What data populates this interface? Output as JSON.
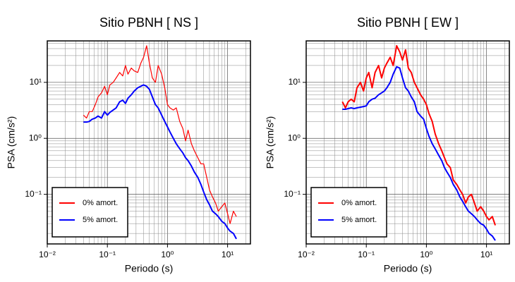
{
  "chart_data": [
    {
      "type": "line",
      "title": "Sitio PBNH [ NS ]",
      "x_label": "Periodo (s)",
      "y_label": "PSA (cm/s²)",
      "xscale": "log",
      "yscale": "log",
      "grid": "major and minor",
      "legend": "lower left",
      "xlim": [
        0.01,
        24
      ],
      "ylim": [
        0.013,
        55
      ],
      "xticks": [
        {
          "value": 0.01,
          "label": "10⁻²"
        },
        {
          "value": 0.1,
          "label": "10⁻¹"
        },
        {
          "value": 1,
          "label": "10⁰"
        },
        {
          "value": 10,
          "label": "10¹"
        }
      ],
      "yticks": [
        {
          "value": 0.1,
          "label": "10⁻¹"
        },
        {
          "value": 1,
          "label": "10⁰"
        },
        {
          "value": 10,
          "label": "10¹"
        }
      ],
      "x": [
        0.04,
        0.045,
        0.05,
        0.056,
        0.063,
        0.07,
        0.08,
        0.09,
        0.1,
        0.11,
        0.125,
        0.14,
        0.16,
        0.18,
        0.2,
        0.22,
        0.25,
        0.28,
        0.32,
        0.36,
        0.4,
        0.45,
        0.5,
        0.56,
        0.63,
        0.7,
        0.8,
        0.9,
        1.0,
        1.1,
        1.25,
        1.4,
        1.6,
        1.8,
        2.0,
        2.2,
        2.5,
        2.8,
        3.2,
        3.6,
        4.0,
        4.5,
        5.0,
        5.6,
        6.3,
        7.0,
        8.0,
        9.0,
        10,
        11,
        12.5,
        14
      ],
      "series": [
        {
          "name": "0% amort.",
          "color": "#ff0000",
          "width": 1.2,
          "values": [
            2.6,
            2.3,
            3.0,
            3.0,
            4.0,
            5.5,
            6.5,
            8.5,
            6,
            9,
            10,
            12,
            15,
            13,
            20,
            14,
            18,
            16,
            15,
            22,
            28,
            45,
            22,
            12,
            10,
            20,
            14,
            8,
            4,
            3.5,
            3.2,
            3.5,
            2.0,
            1.5,
            0.9,
            1.4,
            0.8,
            0.6,
            0.45,
            0.35,
            0.35,
            0.2,
            0.12,
            0.09,
            0.07,
            0.05,
            0.06,
            0.07,
            0.045,
            0.03,
            0.05,
            0.04
          ]
        },
        {
          "name": "5% amort.",
          "color": "#0000ff",
          "width": 2,
          "values": [
            1.95,
            1.95,
            2.0,
            2.2,
            2.3,
            2.5,
            2.3,
            3.0,
            2.6,
            2.9,
            3.2,
            3.5,
            4.5,
            4.8,
            4.2,
            5.2,
            6,
            7,
            8,
            8.5,
            9,
            8.5,
            7.5,
            5.5,
            4,
            3.5,
            2.6,
            2.0,
            1.6,
            1.3,
            1.0,
            0.8,
            0.65,
            0.55,
            0.45,
            0.4,
            0.32,
            0.25,
            0.2,
            0.15,
            0.11,
            0.08,
            0.065,
            0.05,
            0.045,
            0.04,
            0.033,
            0.03,
            0.025,
            0.022,
            0.02,
            0.016
          ]
        }
      ]
    },
    {
      "type": "line",
      "title": "Sitio PBNH [ EW ]",
      "x_label": "Periodo (s)",
      "y_label": "PSA (cm/s²)",
      "xscale": "log",
      "yscale": "log",
      "grid": "major and minor",
      "legend": "lower left",
      "xlim": [
        0.01,
        24
      ],
      "ylim": [
        0.013,
        55
      ],
      "xticks": [
        {
          "value": 0.01,
          "label": "10⁻²"
        },
        {
          "value": 0.1,
          "label": "10⁻¹"
        },
        {
          "value": 1,
          "label": "10⁰"
        },
        {
          "value": 10,
          "label": "10¹"
        }
      ],
      "yticks": [
        {
          "value": 0.1,
          "label": "10⁻¹"
        },
        {
          "value": 1,
          "label": "10⁰"
        },
        {
          "value": 10,
          "label": "10¹"
        }
      ],
      "x": [
        0.04,
        0.045,
        0.05,
        0.056,
        0.063,
        0.07,
        0.08,
        0.09,
        0.1,
        0.11,
        0.125,
        0.14,
        0.16,
        0.18,
        0.2,
        0.22,
        0.25,
        0.28,
        0.32,
        0.36,
        0.4,
        0.45,
        0.5,
        0.56,
        0.63,
        0.7,
        0.8,
        0.9,
        1.0,
        1.1,
        1.25,
        1.4,
        1.6,
        1.8,
        2.0,
        2.2,
        2.5,
        2.8,
        3.2,
        3.6,
        4.0,
        4.5,
        5.0,
        5.6,
        6.3,
        7.0,
        8.0,
        9.0,
        10,
        11,
        12.5,
        14
      ],
      "series": [
        {
          "name": "0% amort.",
          "color": "#ff0000",
          "width": 2,
          "values": [
            4.5,
            3.5,
            4.5,
            5,
            4.5,
            8,
            10,
            7,
            12,
            15,
            8,
            15,
            20,
            12,
            18,
            22,
            28,
            20,
            45,
            35,
            25,
            38,
            18,
            15,
            10,
            8,
            6,
            5,
            4,
            2.8,
            2.0,
            1.2,
            0.8,
            0.6,
            0.45,
            0.35,
            0.3,
            0.18,
            0.15,
            0.12,
            0.1,
            0.07,
            0.09,
            0.1,
            0.07,
            0.05,
            0.06,
            0.05,
            0.04,
            0.035,
            0.04,
            0.028
          ]
        },
        {
          "name": "5% amort.",
          "color": "#0000ff",
          "width": 2,
          "values": [
            3.3,
            3.3,
            3.4,
            3.5,
            3.4,
            3.5,
            3.6,
            3.7,
            3.8,
            4.5,
            5,
            5.2,
            6,
            6.5,
            7,
            8,
            10,
            14,
            19,
            18,
            12,
            8,
            7,
            5.5,
            4.5,
            3,
            2.5,
            2.2,
            1.5,
            1.1,
            0.8,
            0.65,
            0.5,
            0.4,
            0.3,
            0.25,
            0.2,
            0.15,
            0.12,
            0.09,
            0.075,
            0.06,
            0.05,
            0.045,
            0.04,
            0.035,
            0.03,
            0.028,
            0.024,
            0.02,
            0.018,
            0.015
          ]
        }
      ]
    }
  ]
}
